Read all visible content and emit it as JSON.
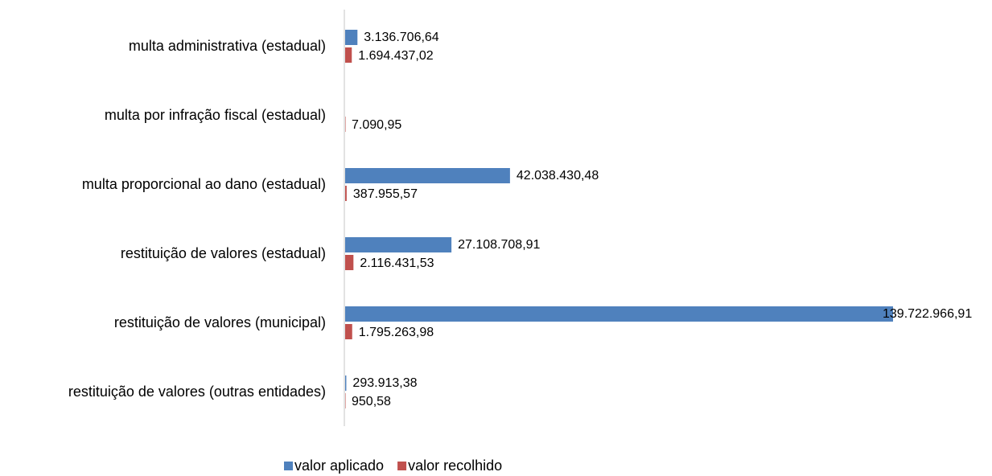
{
  "chart_data": {
    "type": "bar",
    "orientation": "horizontal",
    "categories": [
      "multa administrativa (estadual)",
      "multa por infração fiscal (estadual)",
      "multa proporcional ao dano (estadual)",
      "restituição de valores (estadual)",
      "restituição de valores (municipal)",
      "restituição de valores (outras entidades)"
    ],
    "series": [
      {
        "name": "valor aplicado",
        "color": "#4f81bd",
        "values": [
          3136706.64,
          null,
          42038430.48,
          27108708.91,
          139722966.91,
          293913.38
        ],
        "value_labels": [
          "3.136.706,64",
          null,
          "42.038.430,48",
          "27.108.708,91",
          "139.722.966,91",
          "293.913,38"
        ]
      },
      {
        "name": "valor recolhido",
        "color": "#c0504d",
        "values": [
          1694437.02,
          7090.95,
          387955.57,
          2116431.53,
          1795263.98,
          950.58
        ],
        "value_labels": [
          "1.694.437,02",
          "7.090,95",
          "387.955,57",
          "2.116.431,53",
          "1.795.263,98",
          "950,58"
        ]
      }
    ],
    "legend": "bottom"
  }
}
